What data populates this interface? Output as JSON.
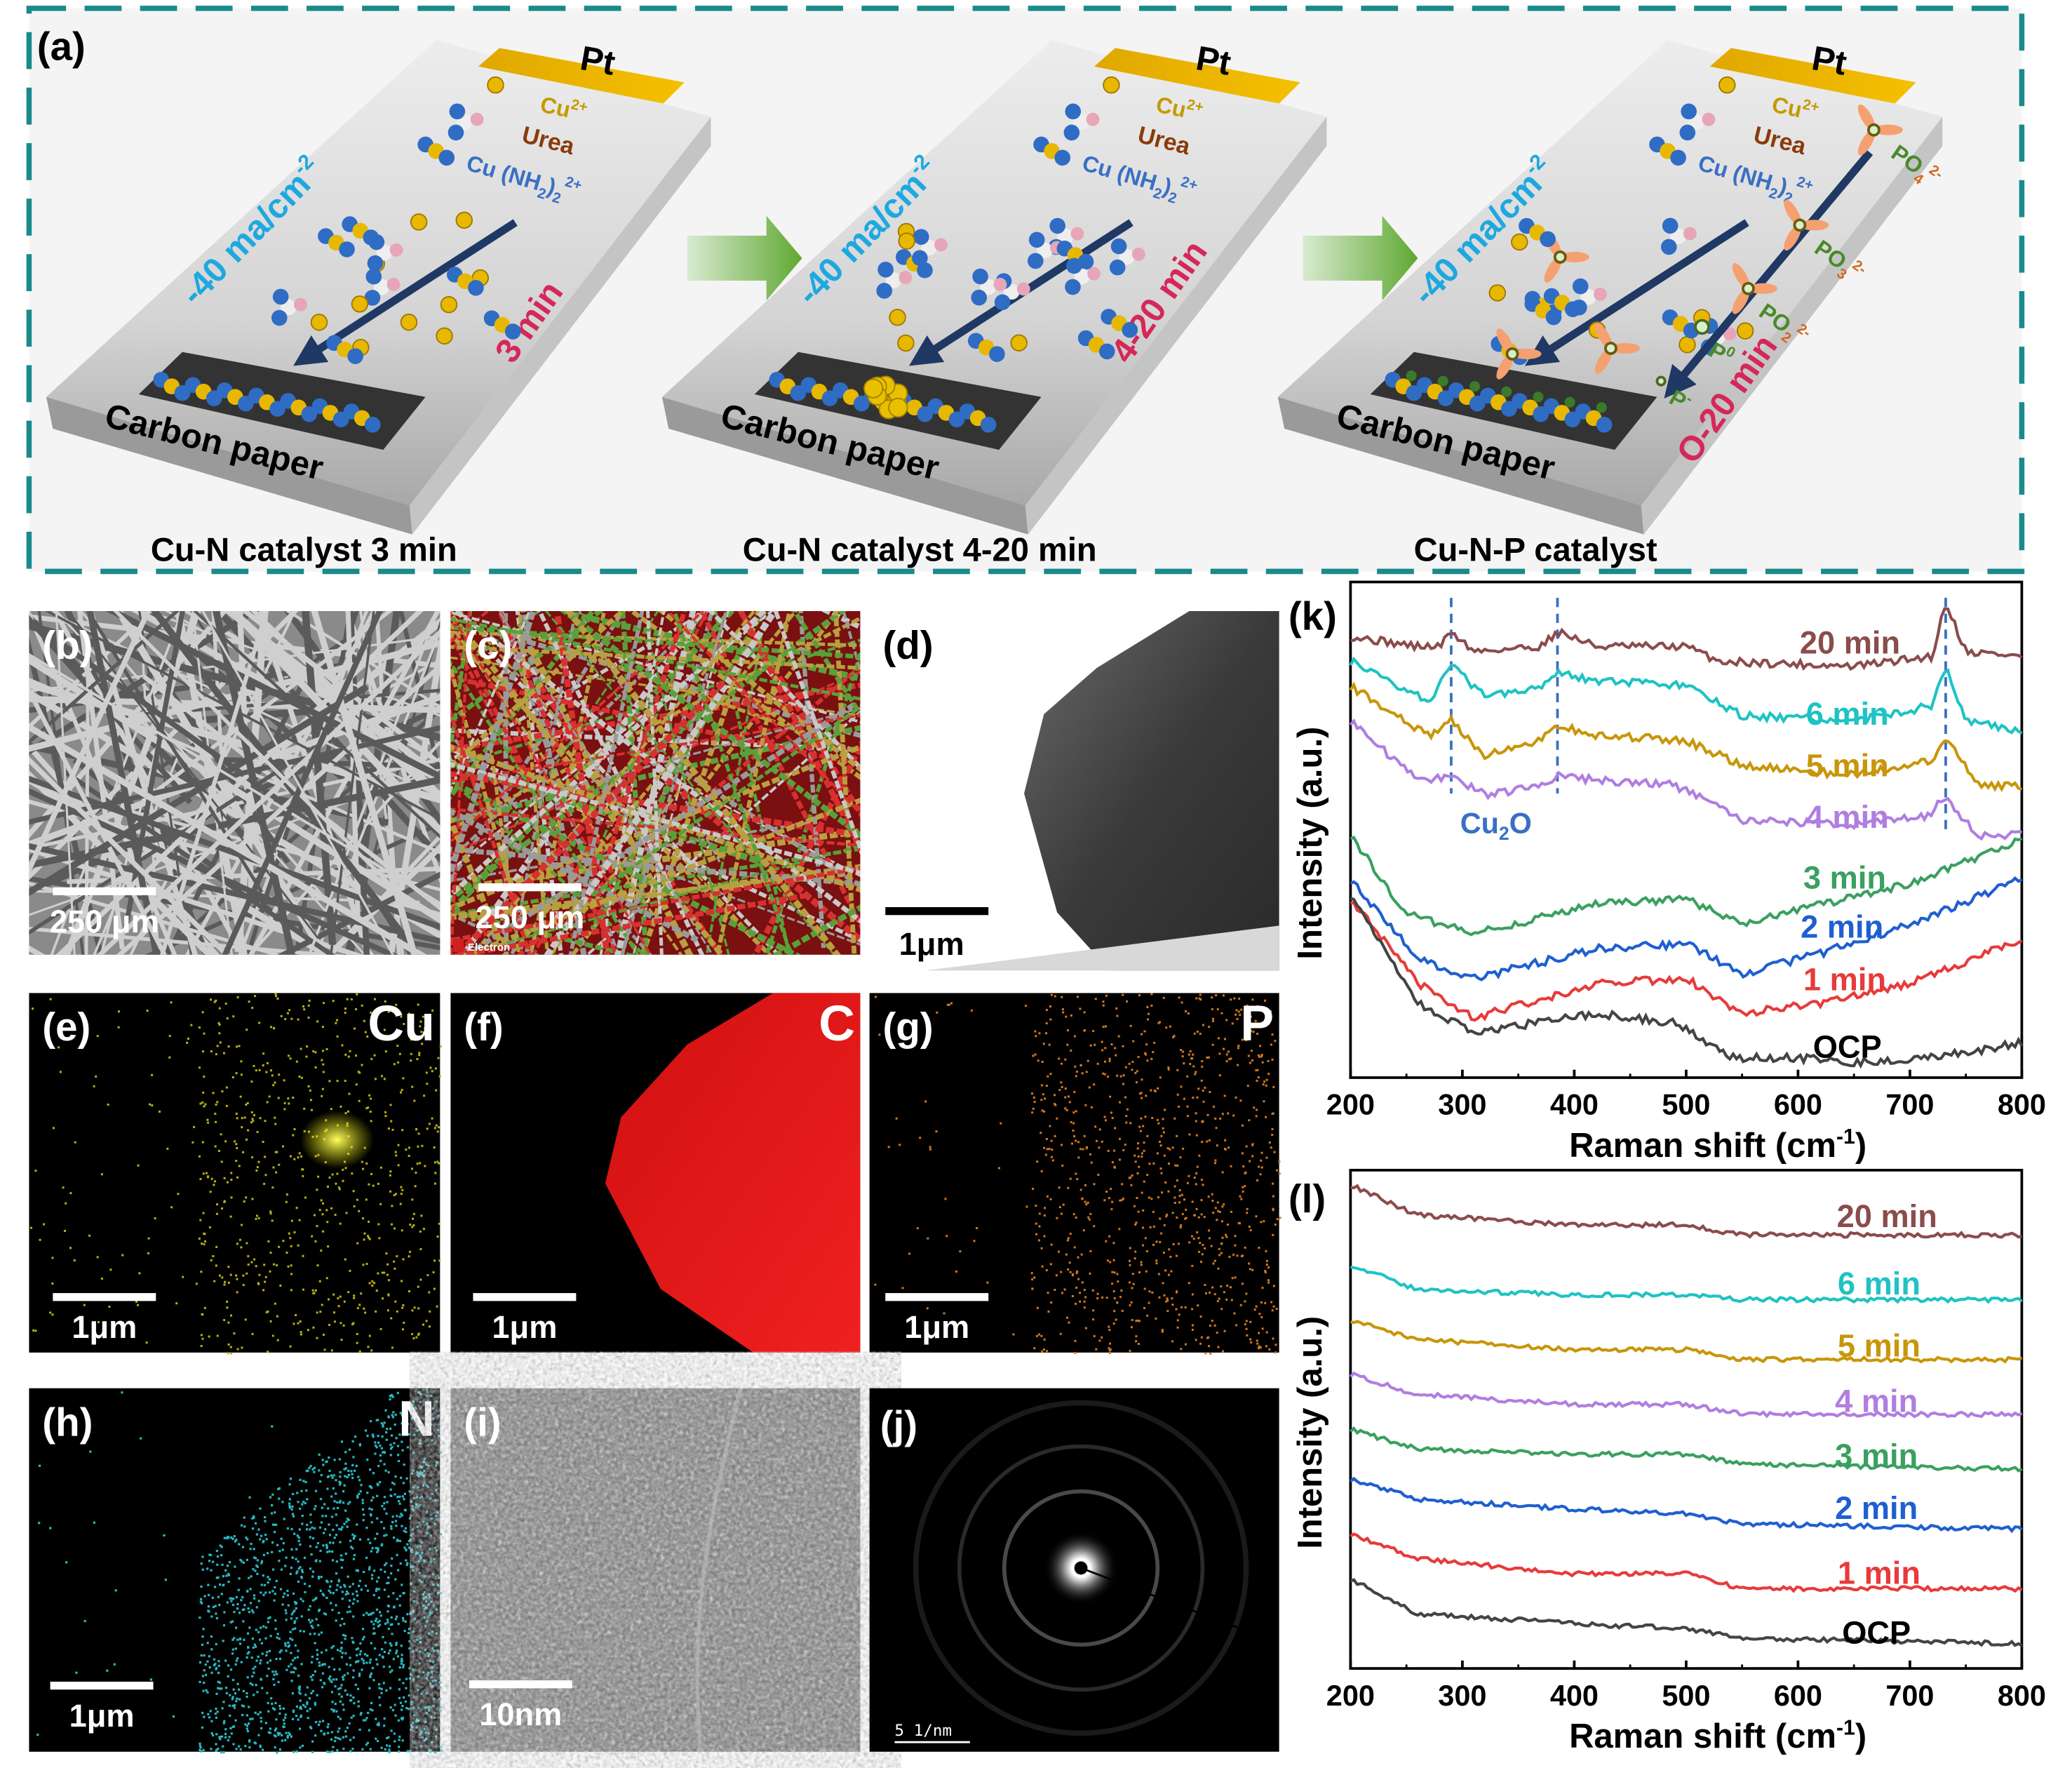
{
  "panel_a": {
    "label": "(a)",
    "slabs": [
      {
        "pt": "Pt",
        "cu": "Cu",
        "cu_sup": "2+",
        "urea": "Urea",
        "cx_a": "Cu (NH",
        "cx_b": "2",
        "cx_c": ")",
        "cx_d": "2",
        "cx_e": "2+",
        "current": "-40 ma/cm",
        "current_sup": "-2",
        "time": "3 min",
        "carbon": "Carbon paper",
        "caption": "Cu-N catalyst 3 min"
      },
      {
        "pt": "Pt",
        "cu": "Cu",
        "cu_sup": "2+",
        "urea": "Urea",
        "cx_a": "Cu (NH",
        "cx_b": "2",
        "cx_c": ")",
        "cx_d": "2",
        "cx_e": "2+",
        "current": "-40 ma/cm",
        "current_sup": "-2",
        "time": "4-20 min",
        "carbon": "Carbon paper",
        "caption": "Cu-N catalyst 4-20  min"
      },
      {
        "pt": "Pt",
        "cu": "Cu",
        "cu_sup": "2+",
        "urea": "Urea",
        "cx_a": "Cu (NH",
        "cx_b": "2",
        "cx_c": ")",
        "cx_d": "2",
        "cx_e": "2+",
        "current": "-40 ma/cm",
        "current_sup": "-2",
        "time": "O-20 min",
        "carbon": "Carbon paper",
        "caption": "Cu-N-P catalyst"
      }
    ],
    "p_species": [
      {
        "main": "PO",
        "sub": "4",
        "sup": "2-"
      },
      {
        "main": "PO",
        "sub": "3",
        "sup": "2-"
      },
      {
        "main": "PO",
        "sub": "2",
        "sup": "2-"
      },
      {
        "main": "P",
        "sub": "",
        "sup": "0"
      },
      {
        "main": "P",
        "sub": "",
        "sup": "-"
      }
    ]
  },
  "micrographs": {
    "b": {
      "label": "(b)",
      "scale": "250 μm"
    },
    "c": {
      "label": "(c)",
      "scale": "250 μm",
      "tag": "Electron"
    },
    "d": {
      "label": "(d)",
      "scale": "1μm"
    },
    "e": {
      "label": "(e)",
      "element": "Cu",
      "scale": "1μm"
    },
    "f": {
      "label": "(f)",
      "element": "C",
      "scale": "1μm"
    },
    "g": {
      "label": "(g)",
      "element": "P",
      "scale": "1μm"
    },
    "h": {
      "label": "(h)",
      "element": "N",
      "scale": "1μm"
    },
    "i": {
      "label": "(i)",
      "scale": "10nm"
    },
    "j": {
      "label": "(j)",
      "scale": "5 1/nm"
    }
  },
  "colors": {
    "frame": "#1a8a8a",
    "cu": "#c49a00",
    "urea": "#8b3a0a",
    "complex": "#3a6fc4",
    "current": "#1ea8e0",
    "time": "#d6275a",
    "p_green": "#4a8a2a",
    "p_orange": "#d2691e",
    "arrow": "#1f3864"
  },
  "chart_data": [
    {
      "type": "line",
      "panel_label": "(k)",
      "xlabel": "Raman shift (cm",
      "xlabel_sup": "-1",
      "xlabel_end": ")",
      "ylabel": "Intensity (a.u.)",
      "xlim": [
        200,
        800
      ],
      "ylim": [
        0,
        100
      ],
      "xticks": [
        "200",
        "300",
        "400",
        "500",
        "600",
        "700",
        "800"
      ],
      "annotation": {
        "text": "Cu",
        "sub": "2",
        "end": "O",
        "peaks": [
          290,
          385,
          732
        ]
      },
      "series": [
        {
          "name": "20 min",
          "color": "#8b4c4c",
          "points": [
            [
              200,
              89
            ],
            [
              260,
              87
            ],
            [
              280,
              87
            ],
            [
              290,
              90
            ],
            [
              310,
              86
            ],
            [
              370,
              87
            ],
            [
              385,
              90
            ],
            [
              420,
              87
            ],
            [
              500,
              87
            ],
            [
              530,
              84
            ],
            [
              650,
              83
            ],
            [
              720,
              85
            ],
            [
              732,
              96
            ],
            [
              750,
              86
            ],
            [
              800,
              85
            ]
          ]
        },
        {
          "name": "6 min",
          "color": "#1fc3c3",
          "points": [
            [
              200,
              84
            ],
            [
              270,
              76
            ],
            [
              290,
              83
            ],
            [
              320,
              77
            ],
            [
              370,
              79
            ],
            [
              385,
              82
            ],
            [
              420,
              80
            ],
            [
              500,
              79
            ],
            [
              550,
              73
            ],
            [
              650,
              72
            ],
            [
              720,
              75
            ],
            [
              732,
              83
            ],
            [
              750,
              72
            ],
            [
              800,
              70
            ]
          ]
        },
        {
          "name": "5 min",
          "color": "#c8960a",
          "points": [
            [
              200,
              79
            ],
            [
              270,
              69
            ],
            [
              290,
              72
            ],
            [
              320,
              65
            ],
            [
              370,
              68
            ],
            [
              385,
              71
            ],
            [
              420,
              69
            ],
            [
              500,
              68
            ],
            [
              550,
              63
            ],
            [
              650,
              61
            ],
            [
              720,
              64
            ],
            [
              732,
              69
            ],
            [
              760,
              59
            ],
            [
              800,
              59
            ]
          ]
        },
        {
          "name": "4 min",
          "color": "#b07ee0",
          "points": [
            [
              200,
              72
            ],
            [
              260,
              60
            ],
            [
              290,
              61
            ],
            [
              320,
              57
            ],
            [
              370,
              59
            ],
            [
              385,
              61
            ],
            [
              420,
              60
            ],
            [
              490,
              59
            ],
            [
              550,
              52
            ],
            [
              650,
              51
            ],
            [
              720,
              53
            ],
            [
              730,
              57
            ],
            [
              760,
              49
            ],
            [
              800,
              49
            ]
          ]
        },
        {
          "name": "3 min",
          "color": "#3aa060",
          "points": [
            [
              200,
              49
            ],
            [
              250,
              33
            ],
            [
              310,
              29
            ],
            [
              420,
              35
            ],
            [
              500,
              36
            ],
            [
              550,
              31
            ],
            [
              620,
              35
            ],
            [
              700,
              39
            ],
            [
              800,
              48
            ]
          ]
        },
        {
          "name": "2 min",
          "color": "#1f5fd0",
          "points": [
            [
              200,
              40
            ],
            [
              260,
              24
            ],
            [
              310,
              20
            ],
            [
              420,
              26
            ],
            [
              500,
              27
            ],
            [
              550,
              21
            ],
            [
              620,
              25
            ],
            [
              700,
              31
            ],
            [
              800,
              40
            ]
          ]
        },
        {
          "name": "1 min",
          "color": "#e83a3a",
          "points": [
            [
              200,
              36
            ],
            [
              260,
              19
            ],
            [
              310,
              12
            ],
            [
              420,
              19
            ],
            [
              500,
              20
            ],
            [
              550,
              13
            ],
            [
              620,
              15
            ],
            [
              700,
              19
            ],
            [
              800,
              28
            ]
          ]
        },
        {
          "name": "OCP",
          "color": "#444444",
          "points": [
            [
              200,
              37
            ],
            [
              260,
              15
            ],
            [
              310,
              9
            ],
            [
              420,
              13
            ],
            [
              490,
              11
            ],
            [
              540,
              4
            ],
            [
              600,
              4
            ],
            [
              650,
              3
            ],
            [
              720,
              4
            ],
            [
              800,
              7
            ]
          ]
        }
      ]
    },
    {
      "type": "line",
      "panel_label": "(l)",
      "xlabel": "Raman shift (cm",
      "xlabel_sup": "-1",
      "xlabel_end": ")",
      "ylabel": "Intensity (a.u.)",
      "xlim": [
        200,
        800
      ],
      "ylim": [
        0,
        100
      ],
      "xticks": [
        "200",
        "300",
        "400",
        "500",
        "600",
        "700",
        "800"
      ],
      "series": [
        {
          "name": "20 min",
          "color": "#8b4c4c",
          "points": [
            [
              200,
              97
            ],
            [
              260,
              91
            ],
            [
              400,
              89
            ],
            [
              500,
              89
            ],
            [
              550,
              87
            ],
            [
              800,
              87
            ]
          ]
        },
        {
          "name": "6 min",
          "color": "#1fc3c3",
          "points": [
            [
              200,
              81
            ],
            [
              260,
              76
            ],
            [
              400,
              75
            ],
            [
              500,
              75
            ],
            [
              550,
              74
            ],
            [
              800,
              74
            ]
          ]
        },
        {
          "name": "5 min",
          "color": "#c8960a",
          "points": [
            [
              200,
              70
            ],
            [
              260,
              66
            ],
            [
              400,
              64
            ],
            [
              500,
              64
            ],
            [
              550,
              62
            ],
            [
              800,
              62
            ]
          ]
        },
        {
          "name": "4 min",
          "color": "#b07ee0",
          "points": [
            [
              200,
              59
            ],
            [
              260,
              55
            ],
            [
              400,
              53
            ],
            [
              500,
              53
            ],
            [
              550,
              51
            ],
            [
              800,
              51
            ]
          ]
        },
        {
          "name": "3 min",
          "color": "#3aa060",
          "points": [
            [
              200,
              48
            ],
            [
              260,
              44
            ],
            [
              400,
              43
            ],
            [
              500,
              43
            ],
            [
              550,
              41
            ],
            [
              800,
              40
            ]
          ]
        },
        {
          "name": "2 min",
          "color": "#1f5fd0",
          "points": [
            [
              200,
              38
            ],
            [
              260,
              34
            ],
            [
              400,
              32
            ],
            [
              500,
              31
            ],
            [
              550,
              29
            ],
            [
              800,
              28
            ]
          ]
        },
        {
          "name": "1 min",
          "color": "#e83a3a",
          "points": [
            [
              200,
              27
            ],
            [
              260,
              22
            ],
            [
              400,
              19
            ],
            [
              500,
              19
            ],
            [
              550,
              16
            ],
            [
              800,
              16
            ]
          ]
        },
        {
          "name": "OCP",
          "color": "#444444",
          "points": [
            [
              200,
              18
            ],
            [
              260,
              11
            ],
            [
              400,
              9
            ],
            [
              500,
              8
            ],
            [
              550,
              6
            ],
            [
              800,
              5
            ]
          ]
        }
      ]
    }
  ]
}
